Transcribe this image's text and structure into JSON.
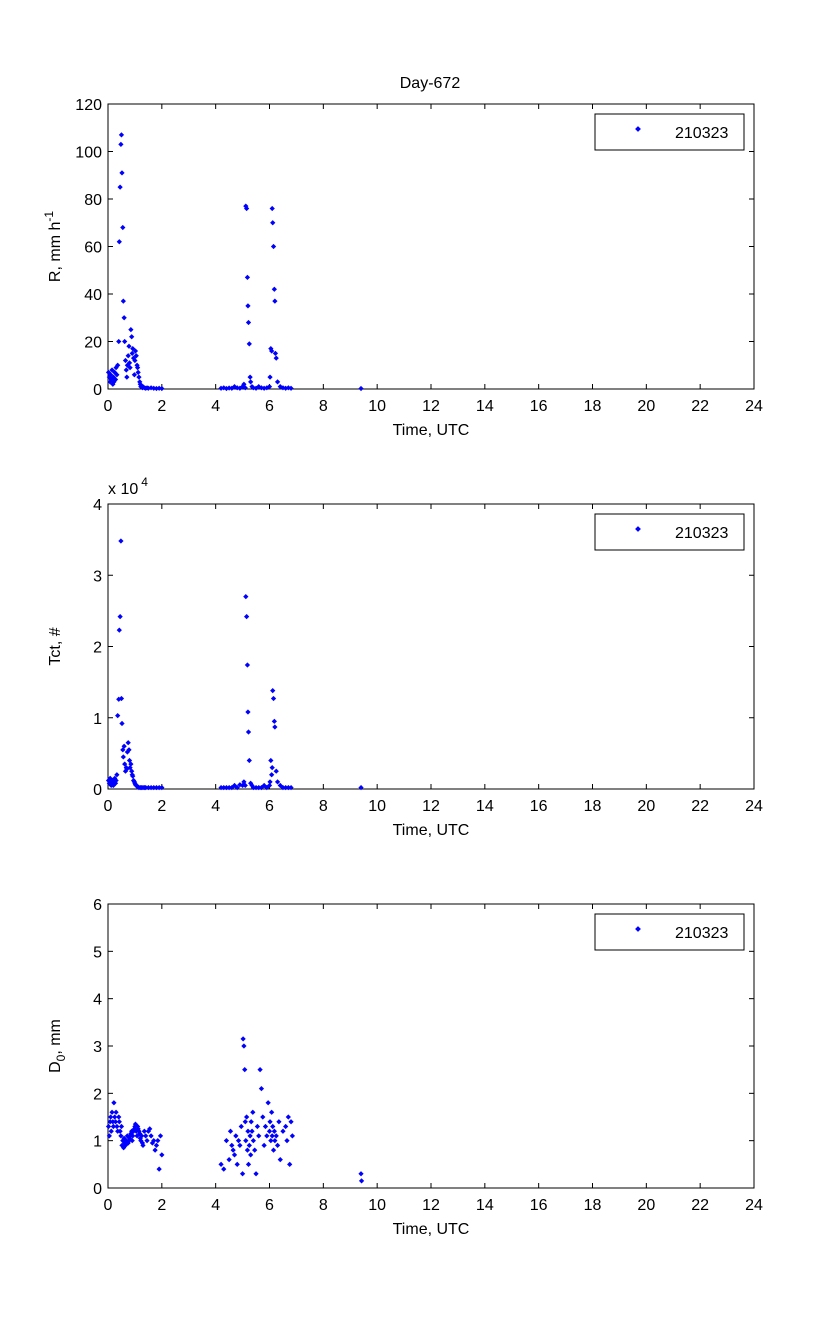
{
  "figure": {
    "title": "Day-672"
  },
  "chart_data": [
    {
      "type": "scatter",
      "title": "Day-672",
      "xlabel": "Time, UTC",
      "ylabel": "R, mm h",
      "ylabel_sup": "-1",
      "y_exponent_label": "",
      "y_exponent_sup": "",
      "xlim": [
        0,
        24
      ],
      "ylim": [
        0,
        120
      ],
      "xticks": [
        "0",
        "2",
        "4",
        "6",
        "8",
        "10",
        "12",
        "14",
        "16",
        "18",
        "20",
        "22",
        "24"
      ],
      "yticks": [
        "0",
        "20",
        "40",
        "60",
        "80",
        "100",
        "120"
      ],
      "grid": false,
      "legend_position": "top-right",
      "marker_color": "#0000ff",
      "series": [
        {
          "name": "210323",
          "x": [
            0.02,
            0.05,
            0.08,
            0.1,
            0.12,
            0.15,
            0.18,
            0.2,
            0.22,
            0.25,
            0.28,
            0.3,
            0.33,
            0.36,
            0.4,
            0.42,
            0.45,
            0.48,
            0.5,
            0.52,
            0.55,
            0.57,
            0.6,
            0.62,
            0.65,
            0.68,
            0.7,
            0.72,
            0.75,
            0.78,
            0.8,
            0.82,
            0.85,
            0.88,
            0.9,
            0.92,
            0.95,
            0.98,
            1.0,
            1.02,
            1.05,
            1.08,
            1.1,
            1.12,
            1.15,
            1.18,
            1.2,
            1.22,
            1.25,
            1.28,
            1.3,
            1.35,
            1.4,
            1.45,
            1.5,
            1.6,
            1.7,
            1.8,
            1.9,
            2.0,
            4.2,
            4.3,
            4.4,
            4.5,
            4.6,
            4.7,
            4.8,
            4.9,
            5.0,
            5.05,
            5.1,
            5.12,
            5.15,
            5.18,
            5.2,
            5.22,
            5.25,
            5.28,
            5.3,
            5.35,
            5.4,
            5.5,
            5.6,
            5.7,
            5.8,
            5.9,
            6.0,
            6.02,
            6.05,
            6.08,
            6.1,
            6.12,
            6.15,
            6.18,
            6.2,
            6.22,
            6.25,
            6.3,
            6.4,
            6.5,
            6.6,
            6.7,
            6.8,
            9.4
          ],
          "y": [
            7,
            5,
            3,
            6,
            4,
            8,
            2,
            5,
            3,
            7,
            4,
            9,
            6,
            10,
            20,
            62,
            85,
            103,
            107,
            91,
            68,
            37,
            30,
            20,
            12,
            8,
            5,
            10,
            14,
            18,
            11,
            9,
            25,
            22,
            15,
            17,
            13,
            6,
            12,
            16,
            14,
            10,
            9,
            7,
            5,
            3,
            2,
            1,
            1,
            0.5,
            1,
            0.5,
            0.3,
            0.5,
            0.3,
            0.5,
            0.3,
            0.2,
            0.3,
            0.2,
            0.3,
            0.5,
            0.2,
            0.4,
            0.3,
            1,
            0.5,
            0.3,
            1,
            2,
            0.5,
            77,
            76,
            47,
            35,
            28,
            19,
            5,
            3,
            1,
            0.5,
            0.3,
            1,
            0.5,
            0.3,
            0.5,
            1,
            5,
            17,
            16,
            76,
            70,
            60,
            42,
            37,
            15,
            13,
            3,
            1,
            0.5,
            0.3,
            0.5,
            0.3,
            0.2
          ]
        }
      ]
    },
    {
      "type": "scatter",
      "title": "",
      "xlabel": "Time, UTC",
      "ylabel": "Tct, #",
      "ylabel_sup": "",
      "y_exponent_label": "x 10",
      "y_exponent_sup": "4",
      "xlim": [
        0,
        24
      ],
      "ylim": [
        0,
        4
      ],
      "xticks": [
        "0",
        "2",
        "4",
        "6",
        "8",
        "10",
        "12",
        "14",
        "16",
        "18",
        "20",
        "22",
        "24"
      ],
      "yticks": [
        "0",
        "1",
        "2",
        "3",
        "4"
      ],
      "grid": false,
      "legend_position": "top-right",
      "marker_color": "#0000ff",
      "series": [
        {
          "name": "210323",
          "x": [
            0.02,
            0.05,
            0.08,
            0.1,
            0.12,
            0.15,
            0.18,
            0.2,
            0.22,
            0.25,
            0.28,
            0.3,
            0.33,
            0.36,
            0.4,
            0.42,
            0.45,
            0.48,
            0.5,
            0.52,
            0.55,
            0.57,
            0.6,
            0.62,
            0.65,
            0.68,
            0.7,
            0.72,
            0.75,
            0.78,
            0.8,
            0.82,
            0.85,
            0.88,
            0.9,
            0.92,
            0.95,
            0.98,
            1.0,
            1.02,
            1.05,
            1.08,
            1.1,
            1.12,
            1.15,
            1.2,
            1.25,
            1.3,
            1.35,
            1.4,
            1.5,
            1.6,
            1.7,
            1.8,
            1.9,
            2.0,
            4.2,
            4.3,
            4.4,
            4.5,
            4.6,
            4.7,
            4.8,
            4.9,
            5.0,
            5.05,
            5.1,
            5.12,
            5.15,
            5.18,
            5.2,
            5.22,
            5.25,
            5.3,
            5.35,
            5.4,
            5.5,
            5.6,
            5.7,
            5.8,
            5.9,
            6.0,
            6.02,
            6.05,
            6.08,
            6.1,
            6.12,
            6.15,
            6.18,
            6.2,
            6.25,
            6.3,
            6.4,
            6.5,
            6.6,
            6.7,
            6.8,
            9.4
          ],
          "y": [
            0.12,
            0.08,
            0.15,
            0.1,
            0.05,
            0.12,
            0.08,
            0.05,
            0.1,
            0.15,
            0.08,
            0.12,
            0.2,
            1.03,
            1.26,
            2.23,
            2.42,
            3.48,
            1.27,
            0.92,
            0.55,
            0.45,
            0.6,
            0.35,
            0.25,
            0.3,
            0.28,
            0.52,
            0.65,
            0.55,
            0.4,
            0.3,
            0.35,
            0.25,
            0.2,
            0.18,
            0.12,
            0.1,
            0.08,
            0.06,
            0.05,
            0.04,
            0.03,
            0.03,
            0.02,
            0.02,
            0.02,
            0.02,
            0.02,
            0.02,
            0.02,
            0.02,
            0.02,
            0.02,
            0.02,
            0.02,
            0.02,
            0.02,
            0.02,
            0.02,
            0.02,
            0.05,
            0.02,
            0.06,
            0.05,
            0.1,
            0.05,
            2.7,
            2.42,
            1.74,
            1.08,
            0.8,
            0.4,
            0.08,
            0.05,
            0.02,
            0.02,
            0.02,
            0.02,
            0.05,
            0.02,
            0.05,
            0.1,
            0.4,
            0.2,
            0.3,
            1.38,
            1.27,
            0.95,
            0.87,
            0.25,
            0.1,
            0.05,
            0.02,
            0.02,
            0.02,
            0.02,
            0.02
          ]
        }
      ]
    },
    {
      "type": "scatter",
      "title": "",
      "xlabel": "Time, UTC",
      "ylabel": "D",
      "ylabel_sub": "0",
      "ylabel_rest": ", mm",
      "y_exponent_label": "",
      "y_exponent_sup": "",
      "xlim": [
        0,
        24
      ],
      "ylim": [
        0,
        6
      ],
      "xticks": [
        "0",
        "2",
        "4",
        "6",
        "8",
        "10",
        "12",
        "14",
        "16",
        "18",
        "20",
        "22",
        "24"
      ],
      "yticks": [
        "0",
        "1",
        "2",
        "3",
        "4",
        "5",
        "6"
      ],
      "grid": false,
      "legend_position": "top-right",
      "marker_color": "#0000ff",
      "series": [
        {
          "name": "210323",
          "x": [
            0.02,
            0.05,
            0.08,
            0.1,
            0.12,
            0.15,
            0.18,
            0.2,
            0.22,
            0.25,
            0.28,
            0.3,
            0.33,
            0.36,
            0.4,
            0.42,
            0.45,
            0.48,
            0.5,
            0.52,
            0.55,
            0.58,
            0.6,
            0.62,
            0.65,
            0.68,
            0.7,
            0.72,
            0.75,
            0.78,
            0.8,
            0.82,
            0.85,
            0.88,
            0.9,
            0.92,
            0.95,
            0.98,
            1.0,
            1.02,
            1.05,
            1.08,
            1.1,
            1.12,
            1.15,
            1.18,
            1.2,
            1.22,
            1.25,
            1.28,
            1.3,
            1.35,
            1.4,
            1.45,
            1.5,
            1.55,
            1.6,
            1.65,
            1.7,
            1.75,
            1.8,
            1.85,
            1.9,
            1.95,
            2.0,
            4.2,
            4.3,
            4.4,
            4.5,
            4.55,
            4.6,
            4.65,
            4.7,
            4.75,
            4.8,
            4.85,
            4.9,
            4.95,
            5.0,
            5.02,
            5.05,
            5.08,
            5.1,
            5.12,
            5.15,
            5.18,
            5.2,
            5.22,
            5.25,
            5.28,
            5.3,
            5.32,
            5.35,
            5.38,
            5.4,
            5.45,
            5.5,
            5.55,
            5.6,
            5.65,
            5.7,
            5.75,
            5.8,
            5.85,
            5.9,
            5.95,
            6.0,
            6.02,
            6.05,
            6.08,
            6.1,
            6.12,
            6.15,
            6.18,
            6.2,
            6.25,
            6.3,
            6.35,
            6.4,
            6.5,
            6.6,
            6.65,
            6.7,
            6.75,
            6.8,
            6.85,
            9.4,
            9.42
          ],
          "y": [
            1.3,
            1.1,
            1.4,
            1.5,
            1.2,
            1.6,
            1.4,
            1.3,
            1.8,
            1.5,
            1.4,
            1.6,
            1.3,
            1.2,
            1.5,
            1.4,
            1.2,
            1.1,
            1.3,
            0.9,
            1.0,
            0.85,
            1.05,
            0.95,
            0.9,
            1.0,
            0.95,
            1.1,
            0.95,
            1.0,
            1.05,
            1.1,
            1.15,
            1.2,
            1.0,
            1.1,
            1.2,
            1.25,
            1.3,
            1.35,
            1.2,
            1.1,
            1.3,
            1.25,
            1.2,
            1.15,
            1.05,
            1.0,
            1.1,
            0.95,
            0.9,
            1.2,
            1.1,
            1.0,
            1.2,
            1.25,
            1.1,
            0.95,
            1.0,
            0.8,
            0.9,
            1.0,
            0.4,
            1.1,
            0.7,
            0.5,
            0.4,
            1.0,
            0.6,
            1.2,
            0.9,
            0.8,
            0.7,
            1.1,
            0.5,
            1.0,
            0.9,
            1.3,
            0.3,
            3.15,
            3.0,
            2.5,
            1.4,
            1.0,
            1.5,
            0.8,
            1.2,
            0.5,
            0.9,
            1.1,
            0.7,
            1.4,
            1.2,
            1.6,
            1.0,
            0.8,
            0.3,
            1.3,
            1.1,
            2.5,
            2.1,
            1.5,
            0.9,
            1.3,
            1.1,
            1.8,
            1.2,
            1.4,
            1.0,
            1.6,
            1.1,
            1.3,
            0.8,
            1.2,
            1.0,
            1.1,
            0.9,
            1.4,
            0.6,
            1.2,
            1.3,
            1.0,
            1.5,
            0.5,
            1.4,
            1.1,
            0.3,
            0.15
          ]
        }
      ]
    }
  ]
}
